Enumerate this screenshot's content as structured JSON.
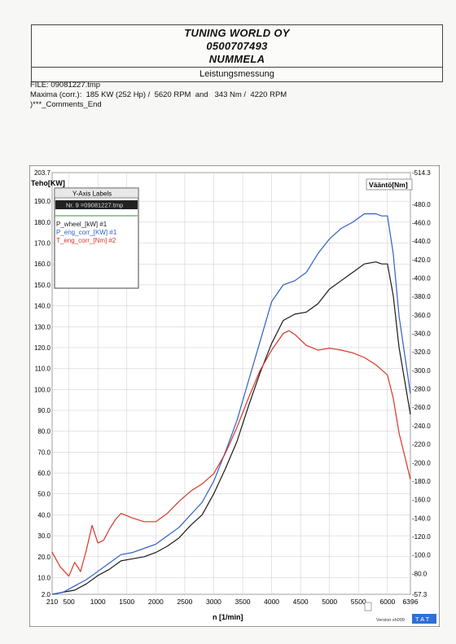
{
  "header": {
    "company": "TUNING WORLD OY",
    "phone": "0500707493",
    "city": "NUMMELA",
    "subtitle": "Leistungsmessung"
  },
  "info": {
    "file": "FILE: 09081227.tmp",
    "maxima": "Maxima (corr.):  185 KW (252 Hp) /  5620 RPM  and   343 Nm /  4220 RPM",
    "comments": ")***_Comments_End"
  },
  "legend": {
    "title": "Y-Axis Labels",
    "file": "Nr. 9 =09081227.tmp"
  },
  "footer": {
    "version": "Version sh009",
    "badge": "T A T"
  },
  "colors": {
    "wheel": "#1a1a1a",
    "engine": "#2f5fc4",
    "torque": "#d8352a"
  },
  "chart_data": {
    "type": "line",
    "title": "",
    "xlabel": "n  [1/min]",
    "ylabel": "Teho[KW]",
    "y2label": "Vääntö[Nm]",
    "xlim": [
      210,
      6396
    ],
    "ylim": [
      2.0,
      203.7
    ],
    "y2lim": [
      57.3,
      514.3
    ],
    "x_ticks": [
      "210",
      "500",
      "1000",
      "1500",
      "2000",
      "2500",
      "3000",
      "3500",
      "4000",
      "4500",
      "5000",
      "5500",
      "6000",
      "6396"
    ],
    "y_ticks": [
      "203.7",
      "190.0",
      "180.0",
      "170.0",
      "160.0",
      "150.0",
      "140.0",
      "130.0",
      "120.0",
      "110.0",
      "100.0",
      "90.0",
      "80.0",
      "70.0",
      "60.0",
      "50.0",
      "40.0",
      "30.0",
      "20.0",
      "10.0",
      "2.0"
    ],
    "y2_ticks": [
      "-514.3",
      "-480.0",
      "-460.0",
      "-440.0",
      "-420.0",
      "-400.0",
      "-380.0",
      "-360.0",
      "-340.0",
      "-320.0",
      "-300.0",
      "-280.0",
      "-260.0",
      "-240.0",
      "-220.0",
      "-200.0",
      "-180.0",
      "-160.0",
      "-140.0",
      "-120.0",
      "-100.0",
      "-80.0",
      "-57.3"
    ],
    "grid": true,
    "legend_position": "top-left",
    "series": [
      {
        "name": "P_wheel_[kW] #1",
        "axis": "left",
        "x": [
          210,
          400,
          600,
          800,
          1000,
          1200,
          1400,
          1600,
          1800,
          2000,
          2200,
          2400,
          2600,
          2800,
          3000,
          3200,
          3400,
          3600,
          3800,
          4000,
          4200,
          4400,
          4600,
          4800,
          5000,
          5200,
          5400,
          5600,
          5800,
          5900,
          6000,
          6100,
          6200,
          6396
        ],
        "y": [
          2,
          3,
          4,
          7,
          11,
          14,
          18,
          19,
          20,
          22,
          25,
          29,
          35,
          40,
          50,
          62,
          75,
          92,
          108,
          122,
          133,
          136,
          137,
          141,
          148,
          152,
          156,
          160,
          161,
          160,
          160,
          145,
          120,
          88
        ]
      },
      {
        "name": "P_eng_corr_[KW] #1",
        "axis": "left",
        "x": [
          210,
          400,
          600,
          800,
          1000,
          1200,
          1400,
          1600,
          1800,
          2000,
          2200,
          2400,
          2600,
          2800,
          3000,
          3200,
          3400,
          3600,
          3800,
          4000,
          4200,
          4400,
          4600,
          4800,
          5000,
          5200,
          5400,
          5600,
          5800,
          5900,
          6000,
          6100,
          6200,
          6396
        ],
        "y": [
          2,
          3,
          6,
          9,
          13,
          17,
          21,
          22,
          24,
          26,
          30,
          34,
          40,
          46,
          56,
          70,
          85,
          104,
          123,
          142,
          150,
          152,
          156,
          165,
          172,
          177,
          180,
          184,
          184,
          183,
          183,
          165,
          135,
          98
        ]
      },
      {
        "name": "T_eng_corr_[Nm] #2",
        "axis": "right",
        "x": [
          210,
          350,
          500,
          600,
          700,
          800,
          900,
          1000,
          1100,
          1200,
          1300,
          1400,
          1600,
          1800,
          2000,
          2200,
          2400,
          2600,
          2800,
          3000,
          3200,
          3400,
          3600,
          3800,
          4000,
          4200,
          4300,
          4400,
          4600,
          4800,
          5000,
          5200,
          5400,
          5600,
          5800,
          6000,
          6100,
          6200,
          6396
        ],
        "y": [
          103,
          87,
          77,
          92,
          82,
          105,
          132,
          113,
          116,
          128,
          138,
          145,
          140,
          136,
          136,
          145,
          158,
          169,
          177,
          188,
          210,
          238,
          270,
          300,
          322,
          340,
          343,
          339,
          327,
          322,
          324,
          322,
          319,
          314,
          306,
          295,
          270,
          232,
          182
        ]
      }
    ]
  }
}
